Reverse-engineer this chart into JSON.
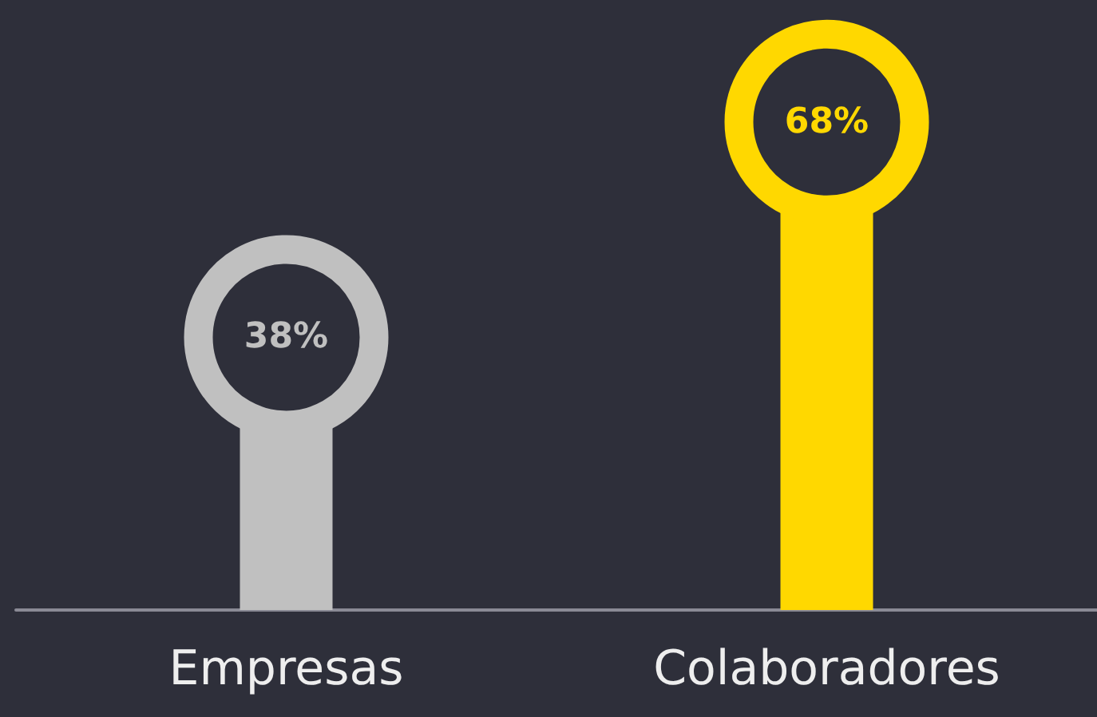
{
  "chart_data": {
    "type": "lollipop",
    "categories": [
      "Empresas",
      "Colaboradores"
    ],
    "values": [
      38,
      68
    ],
    "value_labels": [
      "38%",
      "68%"
    ],
    "colors": [
      "#c0c0c0",
      "#ffd800"
    ]
  }
}
